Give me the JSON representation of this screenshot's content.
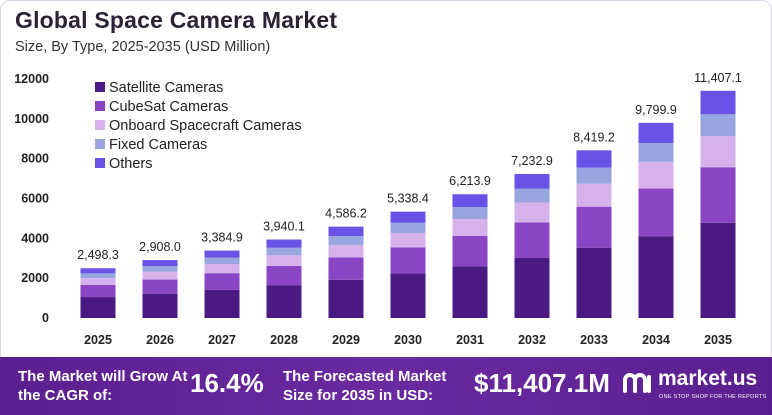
{
  "header": {
    "title": "Global Space Camera Market",
    "subtitle": "Size, By Type, 2025-2035 (USD Million)"
  },
  "chart_data": {
    "type": "bar",
    "stacked": true,
    "categories": [
      "2025",
      "2026",
      "2027",
      "2028",
      "2029",
      "2030",
      "2031",
      "2032",
      "2033",
      "2034",
      "2035"
    ],
    "totals": [
      "2,498.3",
      "2,908.0",
      "3,384.9",
      "3,940.1",
      "4,586.2",
      "5,338.4",
      "6,213.9",
      "7,232.9",
      "8,419.2",
      "9,799.9",
      "11,407.1"
    ],
    "series": [
      {
        "name": "Satellite Cameras",
        "color": "#4a1a82",
        "values": [
          1050,
          1220,
          1420,
          1650,
          1920,
          2240,
          2600,
          3030,
          3530,
          4110,
          4780
        ]
      },
      {
        "name": "CubeSat Cameras",
        "color": "#8a45c4",
        "values": [
          610,
          710,
          830,
          960,
          1120,
          1300,
          1520,
          1770,
          2060,
          2390,
          2790
        ]
      },
      {
        "name": "Onboard Spacecraft Cameras",
        "color": "#d6b1ec",
        "values": [
          340,
          400,
          460,
          540,
          630,
          730,
          850,
          990,
          1150,
          1340,
          1560
        ]
      },
      {
        "name": "Fixed Cameras",
        "color": "#98a5de",
        "values": [
          240,
          280,
          320,
          380,
          440,
          510,
          600,
          700,
          810,
          940,
          1100
        ]
      },
      {
        "name": "Others",
        "color": "#6952e6",
        "values": [
          258.3,
          298,
          354.9,
          410.1,
          476.2,
          558.4,
          643.9,
          742.9,
          869.2,
          1019.9,
          1177.1
        ]
      }
    ],
    "yticks": [
      "0",
      "2000",
      "4000",
      "6000",
      "8000",
      "10000",
      "12000"
    ],
    "ylim": [
      0,
      12000
    ],
    "legend_position": "top-left",
    "grid": false
  },
  "footer": {
    "cagr_label": "The Market will Grow At the CAGR of:",
    "cagr_value": "16.4%",
    "forecast_label": "The Forecasted Market Size for 2035 in USD:",
    "forecast_value": "$11,407.1M",
    "brand_name": "market.us",
    "brand_tagline": "ONE STOP SHOP FOR THE REPORTS"
  }
}
